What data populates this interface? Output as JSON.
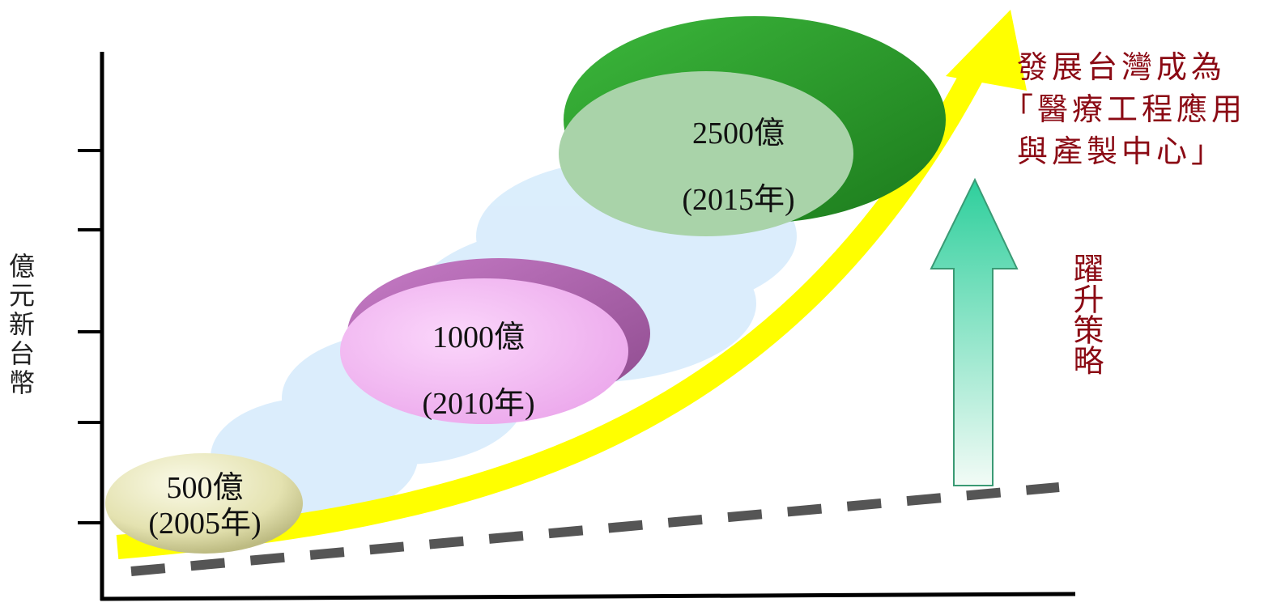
{
  "y_axis_label": "億元新台幣",
  "milestones": [
    {
      "value": "500億",
      "year": "(2005年)",
      "color": "#e8e6b8"
    },
    {
      "value": "1000億",
      "year": "(2010年)",
      "color": "#f0b8f0"
    },
    {
      "value": "2500億",
      "year": "(2015年)",
      "color": "#2fa52f"
    }
  ],
  "goal_text": {
    "line1": "發展台灣成為",
    "line2": "「醫療工程應用",
    "line3": "與產製中心」"
  },
  "strategy_label": "躍升策略",
  "colors": {
    "growth_arrow": "#ffff00",
    "strategy_arrow": "#2ecf9c",
    "baseline_dash": "#555555",
    "accent_text": "#8b0a14"
  }
}
